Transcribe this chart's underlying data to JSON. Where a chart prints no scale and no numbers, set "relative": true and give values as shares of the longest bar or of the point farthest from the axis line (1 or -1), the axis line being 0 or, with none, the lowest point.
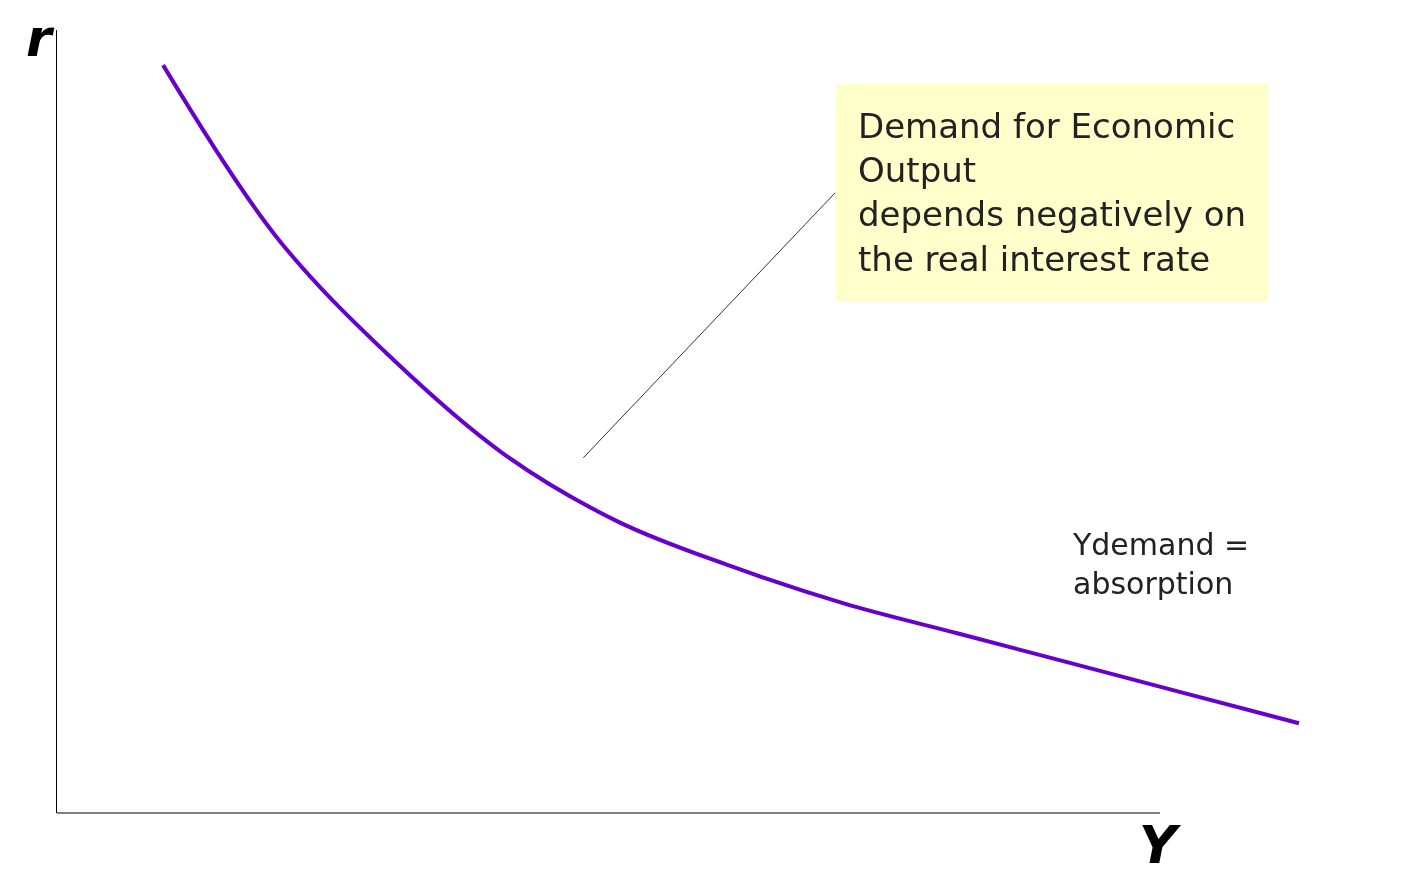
{
  "chart_data": {
    "type": "line",
    "relative": true,
    "xlabel": "Y",
    "ylabel": "r",
    "categories": [
      null,
      null,
      null,
      null,
      null,
      null,
      null,
      null,
      null,
      null,
      null
    ],
    "series": [
      {
        "color": "#6600cc",
        "values": [
          1,
          0.77,
          0.61,
          0.48,
          0.39,
          0.33,
          0.28,
          0.24,
          0.2,
          0.16,
          0.12
        ]
      }
    ],
    "annotations": [
      "Demand for Economic Output depends negatively on the real interest rate",
      "Ydemand = absorption"
    ],
    "marker": "none",
    "line_style": "solid"
  }
}
